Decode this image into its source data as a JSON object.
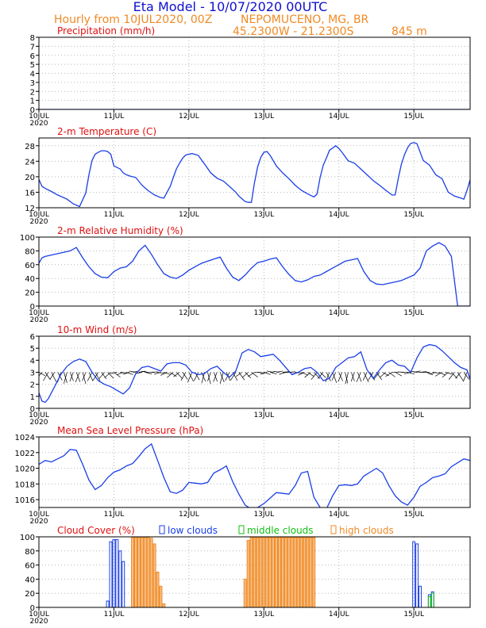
{
  "header": {
    "title": "Eta Model - 10/07/2020 00UTC",
    "subtitle_left": "Hourly from 10JUL2020, 00Z",
    "location": "NEPOMUCENO, MG, BR",
    "coordinates": "45.2300W - 21.2300S",
    "elevation": "845 m"
  },
  "colors": {
    "title": "#1010d0",
    "orange": "#f08a24",
    "panel_title": "#e01010",
    "line": "#1a3ee8",
    "grid": "#b8b8b8",
    "arrow": "#000000",
    "low": "#1a3ee8",
    "mid": "#10c010",
    "high": "#f08a24"
  },
  "x_axis": {
    "range_hours": [
      0,
      138
    ],
    "ticks": [
      {
        "hour": 0,
        "label": "10JUL",
        "sub": "2020"
      },
      {
        "hour": 24,
        "label": "11JUL"
      },
      {
        "hour": 48,
        "label": "12JUL"
      },
      {
        "hour": 72,
        "label": "13JUL"
      },
      {
        "hour": 96,
        "label": "14JUL"
      },
      {
        "hour": 120,
        "label": "15JUL"
      }
    ]
  },
  "chart_data": [
    {
      "type": "line",
      "title": "Precipitation (mm/h)",
      "ylim": [
        0,
        8
      ],
      "yticks": [
        0,
        1,
        2,
        3,
        4,
        5,
        6,
        7,
        8
      ],
      "x": [
        0,
        138
      ],
      "values": [
        0,
        0
      ]
    },
    {
      "type": "line",
      "title": "2-m Temperature (C)",
      "ylim": [
        12,
        30
      ],
      "yticks": [
        12,
        16,
        20,
        24,
        28
      ],
      "x": [
        0,
        1,
        2,
        4,
        6,
        9,
        11,
        13,
        15,
        16,
        17,
        18,
        19,
        20,
        21,
        22,
        23,
        24,
        26,
        27,
        28,
        29,
        31,
        33,
        35,
        37,
        39,
        40,
        42,
        43,
        44,
        45,
        46,
        47,
        49,
        51,
        53,
        55,
        57,
        59,
        61,
        63,
        64,
        65,
        66,
        67,
        68,
        69,
        70,
        71,
        72,
        73,
        74,
        76,
        78,
        80,
        82,
        84,
        86,
        87,
        88,
        89,
        90,
        91,
        92,
        93,
        95,
        96,
        97,
        99,
        101,
        103,
        105,
        107,
        109,
        111,
        112,
        113,
        114,
        115,
        116,
        117,
        118,
        119,
        120,
        121,
        123,
        125,
        127,
        129,
        131,
        133,
        135,
        136,
        137,
        138
      ],
      "values": [
        19.3,
        17.5,
        17.0,
        16.2,
        15.3,
        14.2,
        13.0,
        12.3,
        15.8,
        20.5,
        24.2,
        25.8,
        26.3,
        26.7,
        26.7,
        26.5,
        25.8,
        22.8,
        22.0,
        21.0,
        20.5,
        20.2,
        19.8,
        17.8,
        16.4,
        15.3,
        14.6,
        14.5,
        17.5,
        19.8,
        22.0,
        23.5,
        24.8,
        25.6,
        26.0,
        25.5,
        23.3,
        21.0,
        19.6,
        18.9,
        17.5,
        16.0,
        15.0,
        14.3,
        13.6,
        13.4,
        13.4,
        18.5,
        22.5,
        25.0,
        26.3,
        26.5,
        25.5,
        22.8,
        21.0,
        19.5,
        17.8,
        16.5,
        15.6,
        15.2,
        14.8,
        15.5,
        19.8,
        23.0,
        24.8,
        26.8,
        28.0,
        27.3,
        26.3,
        24.1,
        23.5,
        22.0,
        20.5,
        19.0,
        17.8,
        16.5,
        15.9,
        15.3,
        15.3,
        19.5,
        23.2,
        25.7,
        27.5,
        28.6,
        28.8,
        28.5,
        24.2,
        23.0,
        20.5,
        19.5,
        16.0,
        15.0,
        14.5,
        14.2,
        16.5,
        19.2
      ]
    },
    {
      "type": "line",
      "title": "2-m Relative Humidity (%)",
      "ylim": [
        0,
        100
      ],
      "yticks": [
        0,
        20,
        40,
        60,
        80,
        100
      ],
      "x": [
        0,
        1,
        2,
        4,
        6,
        8,
        10,
        12,
        14,
        16,
        18,
        20,
        22,
        24,
        26,
        28,
        30,
        32,
        34,
        36,
        38,
        40,
        42,
        44,
        46,
        48,
        50,
        52,
        54,
        56,
        58,
        60,
        62,
        64,
        66,
        68,
        70,
        72,
        74,
        76,
        78,
        80,
        82,
        84,
        86,
        88,
        90,
        92,
        94,
        96,
        98,
        100,
        102,
        104,
        106,
        108,
        110,
        112,
        114,
        116,
        118,
        120,
        122,
        124,
        126,
        128,
        130,
        132,
        134,
        136,
        138
      ],
      "values": [
        62,
        70,
        72,
        74,
        76,
        78,
        80,
        85,
        70,
        57,
        47,
        42,
        41,
        50,
        55,
        57,
        65,
        80,
        88,
        75,
        60,
        47,
        42,
        40,
        45,
        52,
        57,
        62,
        65,
        68,
        71,
        55,
        42,
        37,
        45,
        55,
        63,
        65,
        68,
        70,
        57,
        46,
        37,
        35,
        38,
        43,
        45,
        50,
        55,
        60,
        65,
        67,
        69,
        50,
        37,
        32,
        31,
        33,
        35,
        37,
        41,
        45,
        55,
        80,
        87,
        92,
        87,
        72,
        0,
        0,
        0
      ],
      "note": "last points truncated at panel edge"
    },
    {
      "type": "line",
      "title": "10-m Wind (m/s)",
      "ylim": [
        0,
        6
      ],
      "yticks": [
        0,
        1,
        2,
        3,
        4,
        5,
        6
      ],
      "x": [
        0,
        1,
        2,
        3,
        5,
        7,
        9,
        11,
        13,
        15,
        17,
        19,
        21,
        23,
        25,
        27,
        29,
        31,
        33,
        35,
        37,
        39,
        41,
        43,
        45,
        47,
        49,
        51,
        53,
        55,
        57,
        59,
        61,
        63,
        65,
        67,
        69,
        71,
        73,
        75,
        77,
        79,
        81,
        83,
        85,
        87,
        89,
        91,
        93,
        95,
        97,
        99,
        101,
        103,
        105,
        107,
        109,
        111,
        113,
        115,
        117,
        119,
        121,
        123,
        125,
        127,
        129,
        131,
        133,
        135,
        137,
        138
      ],
      "values": [
        1.3,
        0.6,
        0.5,
        0.8,
        1.8,
        2.8,
        3.5,
        3.9,
        4.1,
        3.9,
        3.0,
        2.3,
        2.0,
        1.8,
        1.5,
        1.2,
        1.7,
        2.9,
        3.4,
        3.5,
        3.3,
        3.1,
        3.7,
        3.8,
        3.8,
        3.6,
        3.0,
        2.8,
        2.9,
        3.3,
        3.5,
        3.0,
        2.6,
        3.1,
        4.6,
        4.9,
        4.7,
        4.3,
        4.4,
        4.5,
        4.0,
        3.4,
        2.8,
        3.0,
        3.3,
        3.4,
        3.0,
        2.3,
        2.5,
        3.4,
        3.8,
        4.2,
        4.3,
        4.7,
        3.2,
        2.5,
        3.2,
        3.8,
        4.0,
        3.6,
        3.5,
        3.0,
        4.2,
        5.1,
        5.3,
        5.2,
        4.8,
        4.3,
        3.8,
        3.4,
        3.2,
        2.4
      ],
      "note": "hourly wind-barb arrows also drawn along y=3"
    },
    {
      "type": "line",
      "title": "Mean Sea Level Pressure (hPa)",
      "ylim": [
        1015,
        1024
      ],
      "yticks": [
        1016,
        1018,
        1020,
        1022,
        1024
      ],
      "x": [
        0,
        2,
        4,
        6,
        8,
        10,
        12,
        14,
        16,
        18,
        20,
        22,
        24,
        26,
        28,
        30,
        32,
        34,
        36,
        38,
        40,
        42,
        44,
        46,
        48,
        50,
        52,
        54,
        56,
        58,
        60,
        62,
        64,
        66,
        68,
        70,
        72,
        74,
        76,
        78,
        80,
        82,
        84,
        86,
        88,
        90,
        92,
        94,
        96,
        98,
        100,
        102,
        104,
        106,
        108,
        110,
        112,
        114,
        116,
        118,
        120,
        122,
        124,
        126,
        128,
        130,
        132,
        134,
        136,
        138
      ],
      "values": [
        1020.5,
        1021.0,
        1020.8,
        1021.2,
        1021.6,
        1022.4,
        1022.3,
        1020.5,
        1018.5,
        1017.3,
        1017.8,
        1018.8,
        1019.5,
        1019.8,
        1020.3,
        1020.6,
        1021.5,
        1022.5,
        1023.1,
        1021.0,
        1018.8,
        1017.0,
        1016.8,
        1017.2,
        1018.2,
        1018.1,
        1018.0,
        1018.2,
        1019.4,
        1019.8,
        1020.3,
        1018.3,
        1016.7,
        1015.3,
        1014.8,
        1015.0,
        1015.5,
        1016.2,
        1016.9,
        1016.8,
        1016.7,
        1017.8,
        1019.4,
        1019.6,
        1016.3,
        1015.0,
        1014.8,
        1016.5,
        1017.8,
        1017.9,
        1017.8,
        1018.0,
        1019.0,
        1019.5,
        1020.0,
        1019.4,
        1017.8,
        1016.5,
        1015.7,
        1015.3,
        1016.3,
        1017.7,
        1018.2,
        1018.8,
        1019.0,
        1019.3,
        1020.2,
        1020.7,
        1021.2,
        1021.0
      ]
    },
    {
      "type": "bar",
      "title": "Cloud Cover (%)",
      "legend": {
        "low": "low clouds",
        "mid": "middle clouds",
        "high": "high clouds"
      },
      "ylim": [
        0,
        100
      ],
      "yticks": [
        0,
        20,
        40,
        60,
        80,
        100
      ],
      "series": [
        {
          "name": "low clouds",
          "hours": [
            22,
            23,
            24,
            25,
            26,
            27,
            28,
            119,
            120,
            121,
            122,
            123,
            125,
            126,
            127
          ],
          "values": [
            9,
            93,
            96,
            96,
            80,
            65,
            0,
            0,
            93,
            90,
            30,
            0,
            18,
            22,
            0
          ]
        },
        {
          "name": "middle clouds",
          "hours": [
            125,
            126,
            127
          ],
          "values": [
            15,
            20,
            0
          ]
        },
        {
          "name": "high clouds",
          "hours": [
            30,
            31,
            32,
            33,
            34,
            35,
            36,
            37,
            38,
            39,
            40,
            66,
            67,
            68,
            69,
            70,
            71,
            72,
            73,
            74,
            75,
            76,
            77,
            78,
            79,
            80,
            81,
            82,
            83,
            84,
            85,
            86,
            87,
            88
          ],
          "values": [
            99,
            99,
            99,
            99,
            99,
            99,
            98,
            90,
            50,
            30,
            5,
            40,
            95,
            99,
            99,
            99,
            99,
            99,
            99,
            99,
            99,
            99,
            99,
            99,
            99,
            99,
            99,
            99,
            99,
            99,
            99,
            99,
            99,
            99
          ]
        }
      ]
    }
  ]
}
